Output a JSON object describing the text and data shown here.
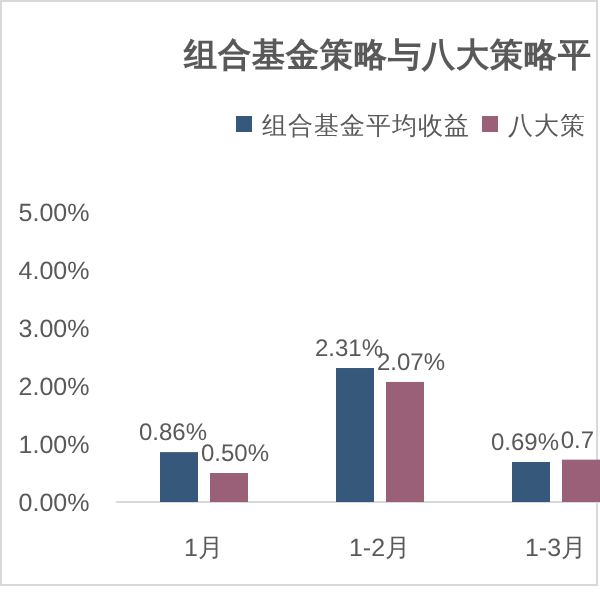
{
  "chart_data": {
    "type": "bar",
    "title": "组合基金策略与八大策略平",
    "categories": [
      "1月",
      "1-2月",
      "1-3月"
    ],
    "series": [
      {
        "name": "组合基金平均收益",
        "color": "#36587a",
        "values": [
          0.86,
          2.31,
          0.69
        ],
        "value_labels": [
          "0.86%",
          "2.31%",
          "0.69%"
        ]
      },
      {
        "name": "八大策",
        "color": "#9a6078",
        "values": [
          0.5,
          2.07,
          0.73
        ],
        "value_labels": [
          "0.50%",
          "2.07%",
          "0.7"
        ]
      }
    ],
    "ylim": [
      0,
      5
    ],
    "yticks": [
      {
        "value": 0,
        "label": "0.00%"
      },
      {
        "value": 1,
        "label": "1.00%"
      },
      {
        "value": 2,
        "label": "2.00%"
      },
      {
        "value": 3,
        "label": "3.00%"
      },
      {
        "value": 4,
        "label": "4.00%"
      },
      {
        "value": 5,
        "label": "5.00%"
      }
    ],
    "legend": "top",
    "grid": false
  }
}
